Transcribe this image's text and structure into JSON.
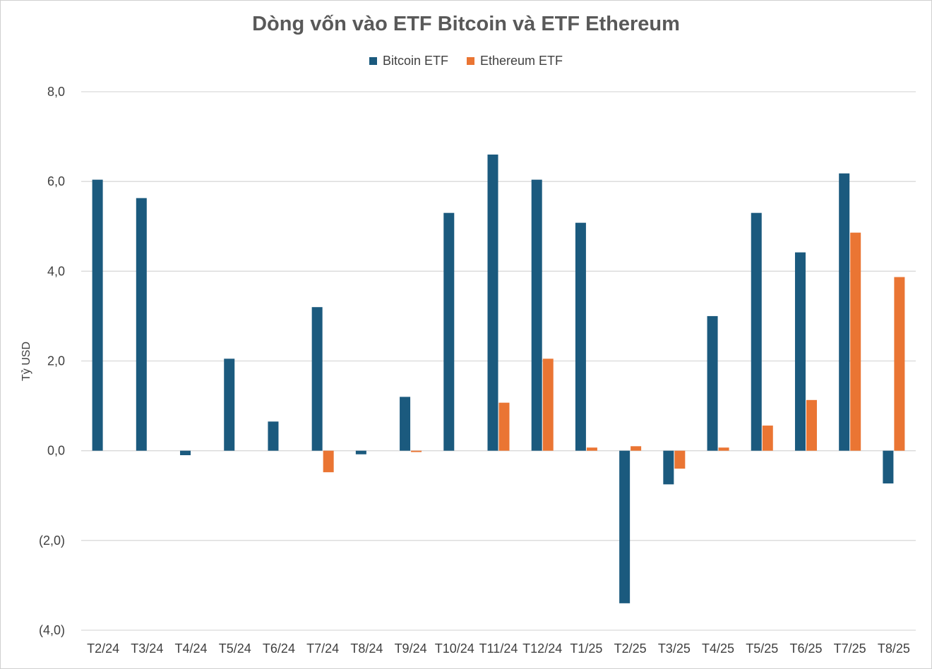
{
  "colors": {
    "bitcoin": "#1b5a7e",
    "ethereum": "#ea7533",
    "grid": "#d9d9d9",
    "negative_tick": "#c00000",
    "text": "#404040"
  },
  "chart_data": {
    "type": "bar",
    "title": "Dòng vốn vào ETF Bitcoin và ETF Ethereum",
    "xlabel": "",
    "ylabel": "Tỷ USD",
    "ylim": [
      -4.0,
      8.0
    ],
    "yticks": [
      8.0,
      6.0,
      4.0,
      2.0,
      0.0,
      -2.0,
      -4.0
    ],
    "ytick_labels": [
      "8,0",
      "6,0",
      "4,0",
      "2,0",
      "0,0",
      "(2,0)",
      "(4,0)"
    ],
    "legend_position": "top-center",
    "grid": true,
    "categories": [
      "T2/24",
      "T3/24",
      "T4/24",
      "T5/24",
      "T6/24",
      "T7/24",
      "T8/24",
      "T9/24",
      "T10/24",
      "T11/24",
      "T12/24",
      "T1/25",
      "T2/25",
      "T3/25",
      "T4/25",
      "T5/25",
      "T6/25",
      "T7/25",
      "T8/25"
    ],
    "series": [
      {
        "name": "Bitcoin ETF",
        "values": [
          6.04,
          5.63,
          -0.1,
          2.05,
          0.65,
          3.2,
          -0.08,
          1.2,
          5.3,
          6.6,
          6.04,
          5.08,
          -3.4,
          -0.75,
          3.0,
          5.3,
          4.42,
          6.18,
          -0.73
        ]
      },
      {
        "name": "Ethereum ETF",
        "values": [
          0,
          0,
          0,
          0,
          0,
          -0.48,
          0,
          -0.03,
          0,
          1.07,
          2.05,
          0.07,
          0.1,
          -0.4,
          0.07,
          0.56,
          1.13,
          4.86,
          3.87
        ]
      }
    ]
  }
}
